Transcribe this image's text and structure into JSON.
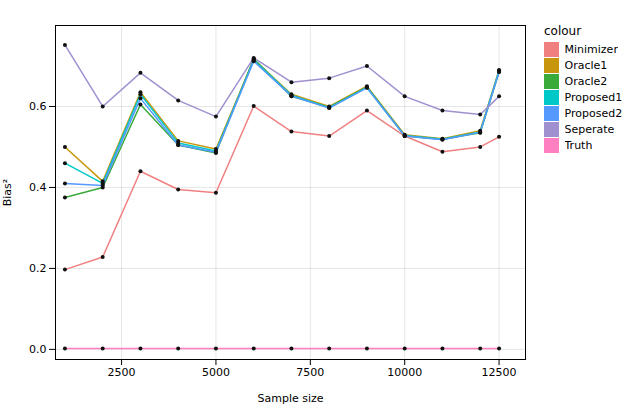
{
  "chart_data": {
    "type": "line",
    "xlabel": "Sample size",
    "ylabel": "Bias²",
    "x": [
      1000,
      2000,
      3000,
      4000,
      5000,
      6000,
      7000,
      8000,
      9000,
      10000,
      11000,
      12000,
      12500
    ],
    "series": [
      {
        "name": "Minimizer",
        "color": "#f08080",
        "values": [
          0.197,
          0.228,
          0.44,
          0.395,
          0.387,
          0.601,
          0.538,
          0.527,
          0.59,
          0.527,
          0.488,
          0.5,
          0.525
        ]
      },
      {
        "name": "Oracle1",
        "color": "#c8960c",
        "values": [
          0.5,
          0.415,
          0.635,
          0.515,
          0.495,
          0.716,
          0.63,
          0.6,
          0.65,
          0.53,
          0.52,
          0.54,
          0.69
        ]
      },
      {
        "name": "Oracle2",
        "color": "#3aaa3a",
        "values": [
          0.375,
          0.4,
          0.605,
          0.505,
          0.485,
          0.718,
          0.625,
          0.598,
          0.648,
          0.527,
          0.519,
          0.535,
          0.685
        ]
      },
      {
        "name": "Proposed1",
        "color": "#00c8c8",
        "values": [
          0.46,
          0.41,
          0.63,
          0.51,
          0.49,
          0.714,
          0.628,
          0.597,
          0.647,
          0.528,
          0.519,
          0.537,
          0.688
        ]
      },
      {
        "name": "Proposed2",
        "color": "#5599ff",
        "values": [
          0.41,
          0.405,
          0.62,
          0.505,
          0.487,
          0.712,
          0.626,
          0.596,
          0.646,
          0.527,
          0.518,
          0.536,
          0.686
        ]
      },
      {
        "name": "Seperate",
        "color": "#a090d0",
        "values": [
          0.752,
          0.6,
          0.683,
          0.615,
          0.575,
          0.72,
          0.66,
          0.67,
          0.7,
          0.625,
          0.59,
          0.58,
          0.625
        ]
      },
      {
        "name": "Truth",
        "color": "#ff80c0",
        "values": [
          0.002,
          0.002,
          0.002,
          0.002,
          0.002,
          0.002,
          0.002,
          0.002,
          0.002,
          0.002,
          0.002,
          0.002,
          0.002
        ]
      }
    ],
    "xlim": [
      750,
      13200
    ],
    "ylim": [
      -0.025,
      0.8
    ],
    "xticks": [
      2500,
      5000,
      7500,
      10000,
      12500
    ],
    "yticks": [
      {
        "value": 0,
        "label": "0.0"
      },
      0.2,
      0.4,
      0.6
    ],
    "grid": true,
    "legend": "right",
    "legend_title": "colour",
    "marker": "circle"
  }
}
